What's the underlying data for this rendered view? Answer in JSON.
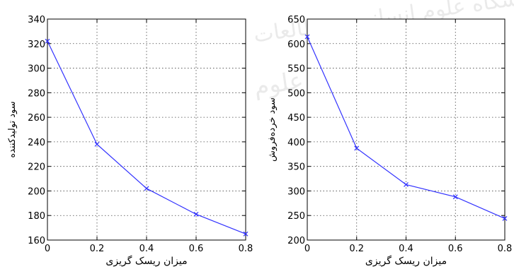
{
  "watermark": {
    "line1": "پژوهشگاه علوم انسانی و مطالعات فرهنگی",
    "line2": "پرتال جامع علوم انسانی"
  },
  "chart_data": [
    {
      "type": "line",
      "title": "",
      "xlabel": "میزان ریسک گریزی",
      "ylabel": "سود تولیدکننده",
      "x": [
        0,
        0.2,
        0.4,
        0.6,
        0.8
      ],
      "xticks": [
        "0",
        "0.2",
        "0.4",
        "0.6",
        "0.8"
      ],
      "xlim": [
        0,
        0.8
      ],
      "ylim": [
        160,
        340
      ],
      "yticks": [
        "160",
        "180",
        "200",
        "220",
        "240",
        "260",
        "280",
        "300",
        "320",
        "340"
      ],
      "grid": true,
      "series": [
        {
          "values": [
            322,
            238,
            202,
            181,
            165
          ],
          "color": "#3333ff",
          "marker": "x"
        }
      ]
    },
    {
      "type": "line",
      "title": "",
      "xlabel": "میزان ریسک گریزی",
      "ylabel": "سود خرده‌فروش",
      "x": [
        0,
        0.2,
        0.4,
        0.6,
        0.8
      ],
      "xticks": [
        "0",
        "0.2",
        "0.4",
        "0.6",
        "0.8"
      ],
      "xlim": [
        0,
        0.8
      ],
      "ylim": [
        200,
        650
      ],
      "yticks": [
        "200",
        "250",
        "300",
        "350",
        "400",
        "450",
        "500",
        "550",
        "600",
        "650"
      ],
      "grid": true,
      "series": [
        {
          "values": [
            614,
            387,
            313,
            288,
            244
          ],
          "color": "#3333ff",
          "marker": "x"
        }
      ]
    }
  ]
}
